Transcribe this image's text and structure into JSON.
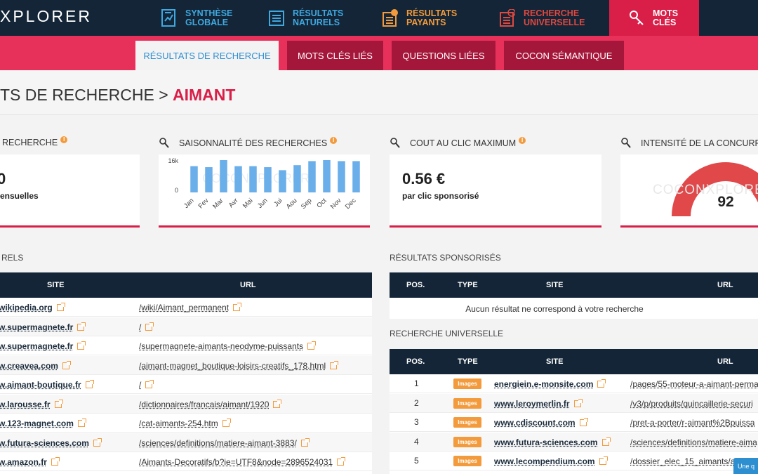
{
  "app": {
    "logo": "XPLORER"
  },
  "nav": [
    {
      "label1": "Synthèse",
      "label2": "globale",
      "icon": "report-icon",
      "color": "blue"
    },
    {
      "label1": "Résultats",
      "label2": "naturels",
      "icon": "list-icon",
      "color": "blue"
    },
    {
      "label1": "Résultats",
      "label2": "payants",
      "icon": "euro-list-icon",
      "color": "orange"
    },
    {
      "label1": "Recherche",
      "label2": "universelle",
      "icon": "globe-list-icon",
      "color": "red"
    },
    {
      "label1": "Mots",
      "label2": "clés",
      "icon": "key-icon",
      "color": "active"
    }
  ],
  "subtabs": [
    "Résultats de recherche",
    "Mots clés liés",
    "Questions liées",
    "Cocon sémantique"
  ],
  "page_title": {
    "prefix": "TS DE RECHERCHE >",
    "keyword": "AIMANT"
  },
  "cards": {
    "volume": {
      "label": "RECHERCHE",
      "value": "0",
      "sub": "ensuelles"
    },
    "season": {
      "label": "SAISONNALITÉ DES RECHERCHES"
    },
    "cpc": {
      "label": "COUT AU CLIC MAXIMUM",
      "value": "0.56 €",
      "sub": "par clic sponsorisé"
    },
    "competition": {
      "label": "INTENSITÉ DE LA CONCURRE",
      "value": "92",
      "percent": 92,
      "watermark": "COCONXPLORER"
    }
  },
  "chart_data": {
    "type": "bar",
    "categories": [
      "Jan",
      "Fev",
      "Mar",
      "Avr",
      "Mai",
      "Jun",
      "Jui",
      "Aou",
      "Sep",
      "Oct",
      "Nov",
      "Dec"
    ],
    "values": [
      13000,
      12500,
      16000,
      13000,
      13000,
      12500,
      11000,
      13500,
      15500,
      16000,
      15500,
      15500
    ],
    "ylim": [
      0,
      16000
    ],
    "ytick_labels": [
      "16k",
      "0"
    ],
    "color": "#6aaeea",
    "watermark": "COCONXPLORER"
  },
  "natural": {
    "section_label": "RELS",
    "headers": [
      "SITE",
      "URL"
    ],
    "rows": [
      {
        "site": "wikipedia.org",
        "url": "/wiki/Aimant_permanent"
      },
      {
        "site": "w.supermagnete.fr",
        "url": "/"
      },
      {
        "site": "w.supermagnete.fr",
        "url": "/supermagnete-aimants-neodyme-puissants"
      },
      {
        "site": "w.creavea.com",
        "url": "/aimant-magnet_boutique-loisirs-creatifs_178.html"
      },
      {
        "site": "w.aimant-boutique.fr",
        "url": "/"
      },
      {
        "site": "w.larousse.fr",
        "url": "/dictionnaires/francais/aimant/1920"
      },
      {
        "site": "w.123-magnet.com",
        "url": "/cat-aimants-254.htm"
      },
      {
        "site": "w.futura-sciences.com",
        "url": "/sciences/definitions/matiere-aimant-3883/"
      },
      {
        "site": "w.amazon.fr",
        "url": "/Aimants-Decoratifs/b?ie=UTF8&node=2896524031"
      }
    ]
  },
  "sponsored": {
    "section_label": "RÉSULTATS SPONSORISÉS",
    "headers": [
      "POS.",
      "TYPE",
      "SITE",
      "URL"
    ],
    "empty_message": "Aucun résultat ne correspond à votre recherche"
  },
  "universal": {
    "section_label": "RECHERCHE UNIVERSELLE",
    "headers": [
      "POS.",
      "TYPE",
      "SITE",
      "URL"
    ],
    "rows": [
      {
        "pos": "1",
        "type": "Images",
        "site": "energiein.e-monsite.com",
        "url": "/pages/55-moteur-a-aimant-perma"
      },
      {
        "pos": "2",
        "type": "Images",
        "site": "www.leroymerlin.fr",
        "url": "/v3/p/produits/quincaillerie-securi"
      },
      {
        "pos": "3",
        "type": "Images",
        "site": "www.cdiscount.com",
        "url": "/pret-a-porter/r-aimant%2Bpuissa"
      },
      {
        "pos": "4",
        "type": "Images",
        "site": "www.futura-sciences.com",
        "url": "/sciences/definitions/matiere-aima"
      },
      {
        "pos": "5",
        "type": "Images",
        "site": "www.lecompendium.com",
        "url": "/dossier_elec_15_aimants/ai"
      }
    ]
  },
  "chat": {
    "label": "Une q"
  }
}
